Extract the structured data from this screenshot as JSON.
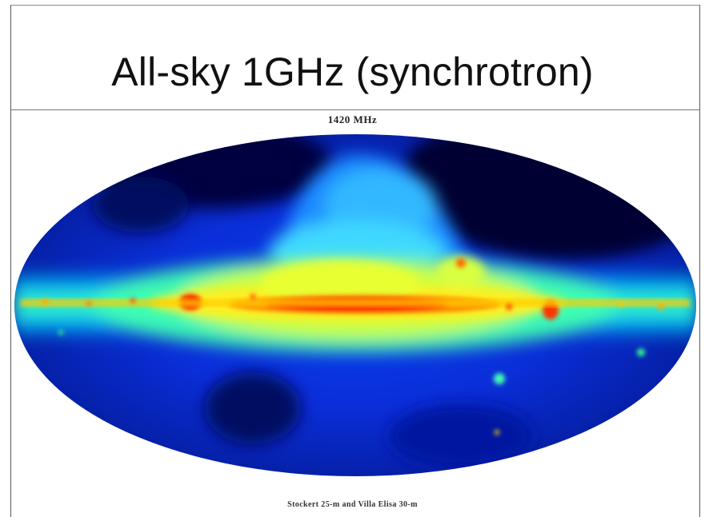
{
  "slide": {
    "title": "All-sky 1GHz (synchrotron)"
  },
  "map": {
    "frequency_label": "1420  MHz",
    "credit": "Stockert 25-m and Villa Elisa 30-m",
    "projection": "elliptical all-sky",
    "colormap": [
      "#000033",
      "#0000cc",
      "#0066ff",
      "#00ccff",
      "#33ff99",
      "#ccff00",
      "#ffee00",
      "#ff7700",
      "#ff1100"
    ]
  }
}
